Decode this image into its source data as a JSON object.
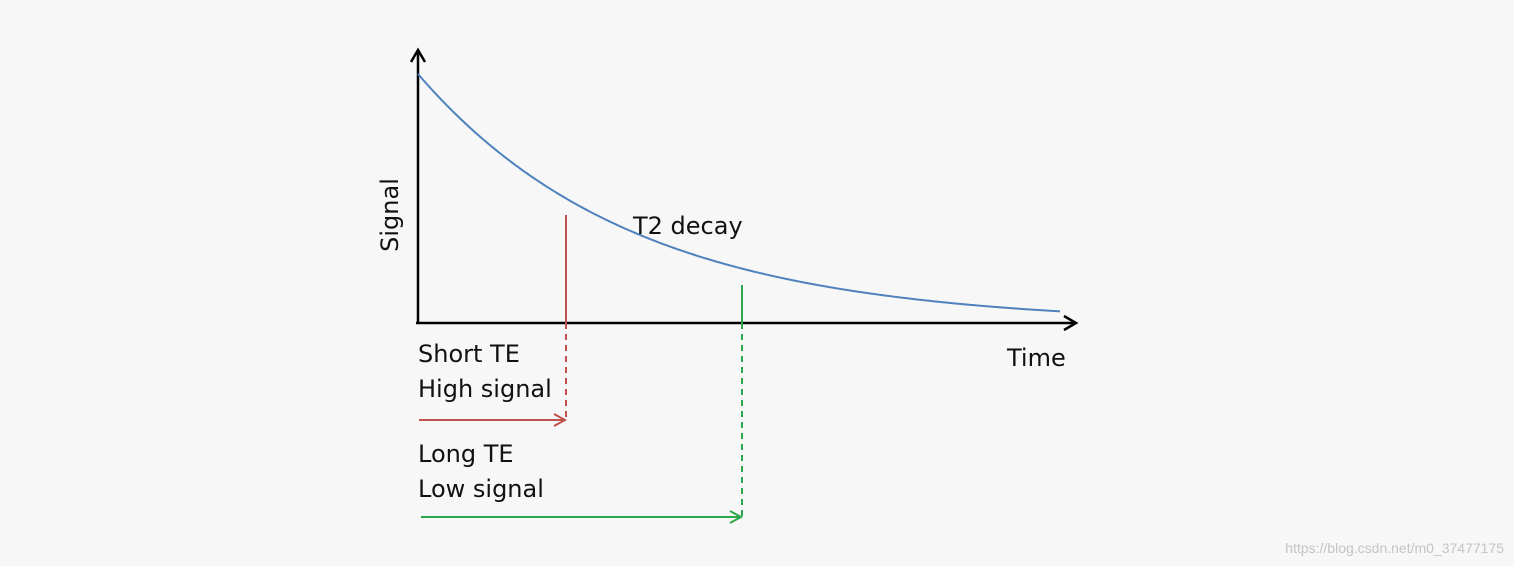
{
  "diagram": {
    "y_axis_label": "Signal",
    "x_axis_label": "Time",
    "curve_label": "T2 decay",
    "short_te": {
      "line1": "Short TE",
      "line2": "High signal"
    },
    "long_te": {
      "line1": "Long TE",
      "line2": "Low signal"
    }
  },
  "colors": {
    "axis": "#000000",
    "curve": "#4f81bd",
    "short_te": "#c0504d",
    "long_te": "#2ca84a"
  },
  "watermark": "https://blog.csdn.net/m0_37477175"
}
